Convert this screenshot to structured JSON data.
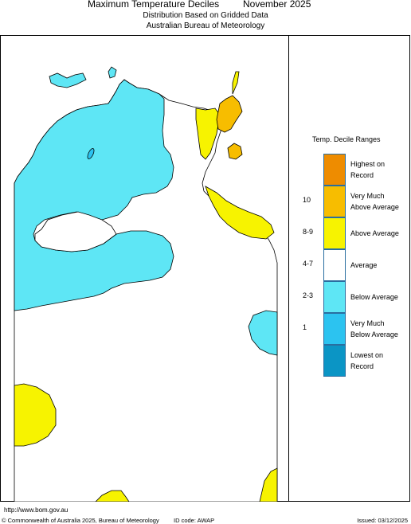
{
  "title": "Maximum Temperature Deciles",
  "period": "November 2025",
  "subtitle": "Distribution Based on Gridded Data",
  "agency": "Australian Bureau of Meteorology",
  "legend": {
    "title": "Temp. Decile Ranges",
    "items": [
      {
        "range": "",
        "label_lines": [
          "Highest on",
          "Record"
        ],
        "color": "#ee8c00"
      },
      {
        "range": "10",
        "label_lines": [
          "Very Much",
          "Above Average"
        ],
        "color": "#f7bd00"
      },
      {
        "range": "8-9",
        "label_lines": [
          "Above Average"
        ],
        "color": "#f7f300"
      },
      {
        "range": "4-7",
        "label_lines": [
          "Average"
        ],
        "color": "#ffffff"
      },
      {
        "range": "2-3",
        "label_lines": [
          "Below Average"
        ],
        "color": "#5ee6f5"
      },
      {
        "range": "1",
        "label_lines": [
          "Very Much",
          "Below Average"
        ],
        "color": "#2cc3f0"
      },
      {
        "range": "",
        "label_lines": [
          "Lowest on",
          "Record"
        ],
        "color": "#0b95c5"
      }
    ]
  },
  "map_colors": {
    "below_average": "#5ee6f5",
    "above_average": "#f7f300",
    "very_much_above": "#f7bd00",
    "highest_on_record": "#ee8c00",
    "average": "#ffffff",
    "outline": "#000000"
  },
  "footer": {
    "url": "http://www.bom.gov.au",
    "copyright": "© Commonwealth of Australia 2025, Bureau of Meteorology",
    "id_code": "ID code: AWAP",
    "issued": "Issued: 03/12/2025"
  }
}
